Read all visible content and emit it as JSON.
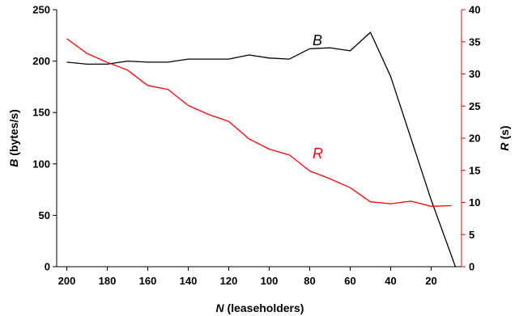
{
  "chart_data": {
    "type": "line",
    "x": [
      200,
      190,
      180,
      170,
      160,
      150,
      140,
      130,
      120,
      110,
      100,
      90,
      80,
      70,
      60,
      50,
      40,
      30,
      20,
      10
    ],
    "x_axis": {
      "title_var": "N",
      "title_rest": " (leaseholders)",
      "ticks": [
        200,
        180,
        160,
        140,
        120,
        100,
        80,
        60,
        40,
        20
      ],
      "tick_labels": [
        "200",
        "180",
        "160",
        "140",
        "120",
        "100",
        "80",
        "60",
        "40",
        "20"
      ],
      "range": [
        205,
        5
      ],
      "reversed": true
    },
    "y_left": {
      "title_var": "B",
      "title_rest": " (bytes/s)",
      "ticks": [
        0,
        50,
        100,
        150,
        200,
        250
      ],
      "tick_labels": [
        "0",
        "50",
        "100",
        "150",
        "200",
        "250"
      ],
      "range": [
        0,
        250
      ],
      "color": "#000000"
    },
    "y_right": {
      "title_var": "R",
      "title_rest": " (s)",
      "ticks": [
        0,
        5,
        10,
        15,
        20,
        25,
        30,
        35,
        40
      ],
      "tick_labels": [
        "0",
        "5",
        "10",
        "15",
        "20",
        "25",
        "30",
        "35",
        "40"
      ],
      "range": [
        0,
        40
      ],
      "color": "#ff0000"
    },
    "series": [
      {
        "name": "B",
        "axis": "left",
        "color": "#000000",
        "x": [
          200,
          190,
          180,
          170,
          160,
          150,
          140,
          130,
          120,
          110,
          100,
          90,
          80,
          70,
          60,
          50,
          40,
          30,
          20,
          8
        ],
        "values": [
          199,
          197,
          197,
          200,
          199,
          199,
          202,
          202,
          202,
          206,
          203,
          202,
          212,
          213,
          210,
          228,
          185,
          125,
          65,
          0
        ]
      },
      {
        "name": "R",
        "axis": "right",
        "color": "#ff0000",
        "x": [
          200,
          190,
          180,
          170,
          160,
          150,
          140,
          130,
          120,
          110,
          100,
          90,
          80,
          70,
          60,
          50,
          40,
          30,
          20,
          10
        ],
        "values": [
          35.5,
          33.2,
          31.8,
          30.6,
          28.2,
          27.6,
          25.1,
          23.7,
          22.6,
          19.9,
          18.3,
          17.4,
          14.9,
          13.7,
          12.3,
          10.1,
          9.8,
          10.2,
          9.4,
          9.5
        ]
      }
    ],
    "grid": false,
    "legend": "inline labels"
  }
}
